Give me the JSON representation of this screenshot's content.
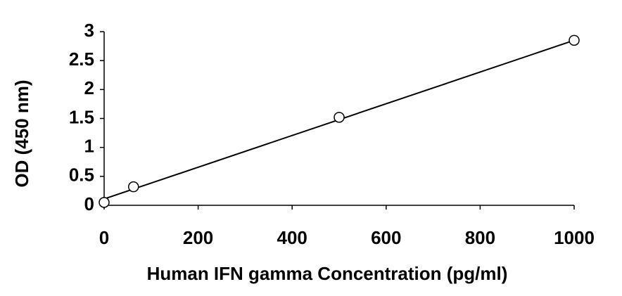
{
  "chart_data": {
    "type": "scatter",
    "x_label": "Human IFN gamma Concentration (pg/ml)",
    "y_label": "OD (450 nm)",
    "x": [
      0,
      62.5,
      500,
      1000
    ],
    "values": [
      0.05,
      0.32,
      1.52,
      2.85
    ],
    "color": "#000000",
    "trendline": {
      "x": [
        0,
        1000
      ],
      "values": [
        0.11,
        2.85
      ]
    },
    "xlim": [
      0,
      1000
    ],
    "xticks": [
      0,
      200,
      400,
      600,
      800,
      1000
    ],
    "ylim": [
      0,
      3
    ],
    "yticks": [
      0,
      0.5,
      1,
      1.5,
      2,
      2.5,
      3
    ],
    "grid": false
  }
}
